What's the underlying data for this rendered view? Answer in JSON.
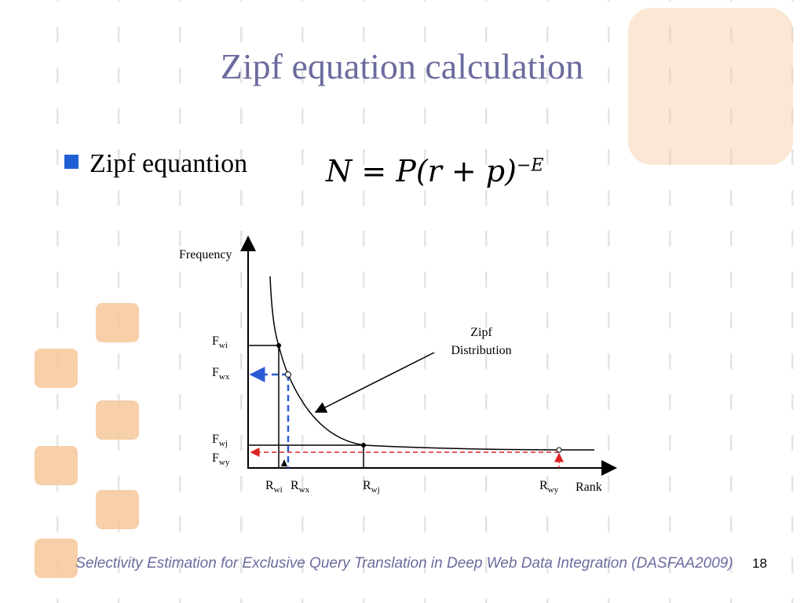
{
  "header": {
    "title": "Zipf equation calculation"
  },
  "bullet": {
    "text": "Zipf equantion",
    "equation": {
      "base": "N = P(r + p)",
      "exponent": "−E"
    }
  },
  "diagram": {
    "y_axis_label": "Frequency",
    "x_axis_label": "Rank",
    "curve_label": [
      "Zipf",
      "Distribution"
    ],
    "y_labels": [
      {
        "main": "F",
        "sub": "wi"
      },
      {
        "main": "F",
        "sub": "wx"
      },
      {
        "main": "F",
        "sub": "wj"
      },
      {
        "main": "F",
        "sub": "wy"
      }
    ],
    "x_labels": [
      {
        "main": "R",
        "sub": "wi"
      },
      {
        "main": "R",
        "sub": "wx"
      },
      {
        "main": "R",
        "sub": "wj"
      },
      {
        "main": "R",
        "sub": "wy"
      }
    ]
  },
  "footer": {
    "text": "Selectivity Estimation for Exclusive Query Translation in Deep Web Data Integration (DASFAA2009)",
    "page": "18"
  }
}
